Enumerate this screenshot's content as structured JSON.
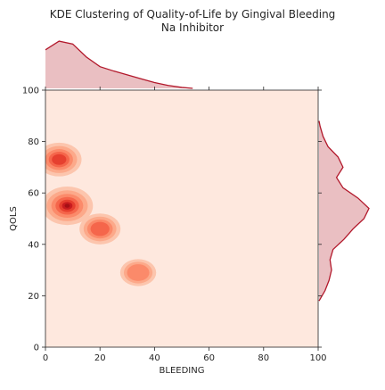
{
  "chart_data": {
    "type": "kde_jointplot",
    "title_lines": [
      "KDE Clustering of Quality-of-Life by Gingival Bleeding",
      "Na Inhibitor"
    ],
    "xlabel": "BLEEDING",
    "ylabel": "QOLS",
    "xlim": [
      0,
      100
    ],
    "ylim": [
      0,
      100
    ],
    "xticks": [
      0,
      20,
      40,
      60,
      80,
      100
    ],
    "yticks": [
      0,
      20,
      40,
      60,
      80,
      100
    ],
    "x_tick_labels": [
      "0",
      "20",
      "40",
      "60",
      "80",
      "100"
    ],
    "y_tick_labels": [
      "0",
      "20",
      "40",
      "60",
      "80",
      "100"
    ],
    "marginal_x_top_label": "100",
    "grid": false,
    "colormap": "Reds",
    "colors": {
      "background": "#fee8de",
      "marginal_line": "#b2182b",
      "marginal_fill": "#e3a9ae"
    },
    "density_clusters": [
      {
        "x": 8,
        "y": 55,
        "weight": 1.0
      },
      {
        "x": 5,
        "y": 73,
        "weight": 0.75
      },
      {
        "x": 20,
        "y": 46,
        "weight": 0.6
      },
      {
        "x": 34,
        "y": 29,
        "weight": 0.4
      }
    ],
    "marginal_x": {
      "x": [
        0,
        5,
        10,
        15,
        20,
        25,
        30,
        35,
        40,
        45,
        50,
        54
      ],
      "density": [
        0.8,
        0.98,
        0.92,
        0.65,
        0.45,
        0.36,
        0.28,
        0.2,
        0.12,
        0.06,
        0.02,
        0.0
      ]
    },
    "marginal_y": {
      "y": [
        18,
        22,
        26,
        30,
        34,
        38,
        42,
        46,
        50,
        54,
        58,
        62,
        66,
        70,
        74,
        78,
        82,
        86,
        88
      ],
      "density": [
        0.0,
        0.12,
        0.2,
        0.25,
        0.22,
        0.28,
        0.5,
        0.68,
        0.9,
        1.0,
        0.78,
        0.48,
        0.35,
        0.48,
        0.38,
        0.18,
        0.08,
        0.02,
        0.0
      ]
    }
  }
}
